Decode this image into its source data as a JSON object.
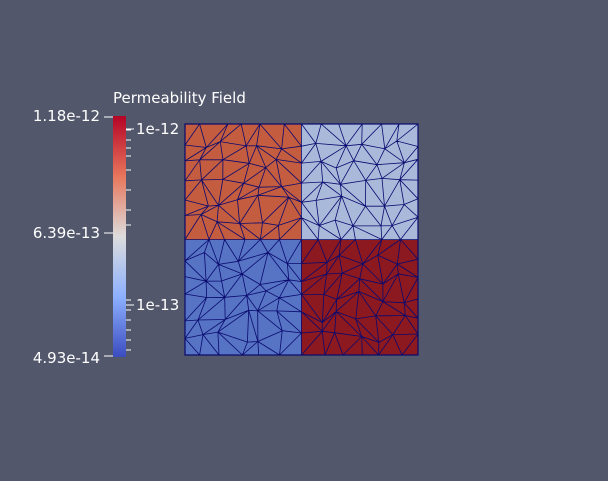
{
  "legend": {
    "title": "Permeability Field",
    "max_label": "1.18e-12",
    "mid_label": "6.39e-13",
    "min_label": "4.93e-14",
    "log_ticks": [
      "1e-12",
      "1e-13"
    ],
    "colormap": [
      "#3b4cc0",
      "#8db0fe",
      "#dddddd",
      "#f49a7b",
      "#b40426"
    ]
  },
  "mesh": {
    "quadrants": [
      {
        "name": "top-left",
        "color": "#c45c3f"
      },
      {
        "name": "top-right",
        "color": "#a9b9da"
      },
      {
        "name": "bottom-left",
        "color": "#5673c4"
      },
      {
        "name": "bottom-right",
        "color": "#8c1820"
      }
    ],
    "edge_color": "#0a0a6e"
  },
  "colors": {
    "background": "#52576b"
  }
}
